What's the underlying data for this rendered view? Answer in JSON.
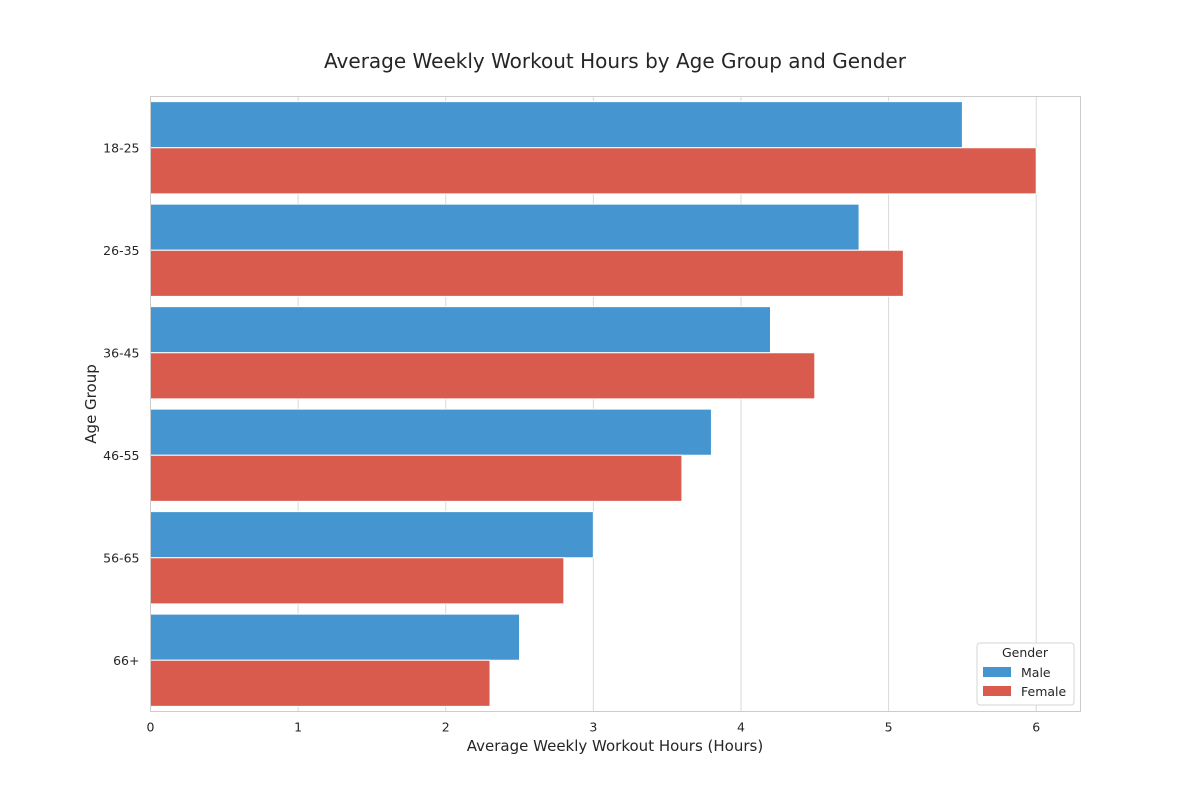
{
  "chart_data": {
    "type": "bar",
    "orientation": "horizontal",
    "title": "Average Weekly Workout Hours by Age Group and Gender",
    "xlabel": "Average Weekly Workout Hours (Hours)",
    "ylabel": "Age Group",
    "categories": [
      "18-25",
      "26-35",
      "36-45",
      "46-55",
      "56-65",
      "66+"
    ],
    "series": [
      {
        "name": "Male",
        "color": "#4596d0",
        "values": [
          5.5,
          4.8,
          4.2,
          3.8,
          3.0,
          2.5
        ]
      },
      {
        "name": "Female",
        "color": "#d95b4e",
        "values": [
          6.0,
          5.1,
          4.5,
          3.6,
          2.8,
          2.3
        ]
      }
    ],
    "xlim": [
      0,
      6.3
    ],
    "xticks": [
      0,
      1,
      2,
      3,
      4,
      5,
      6
    ],
    "grid": true,
    "legend": {
      "title": "Gender",
      "position": "bottom-right"
    }
  }
}
